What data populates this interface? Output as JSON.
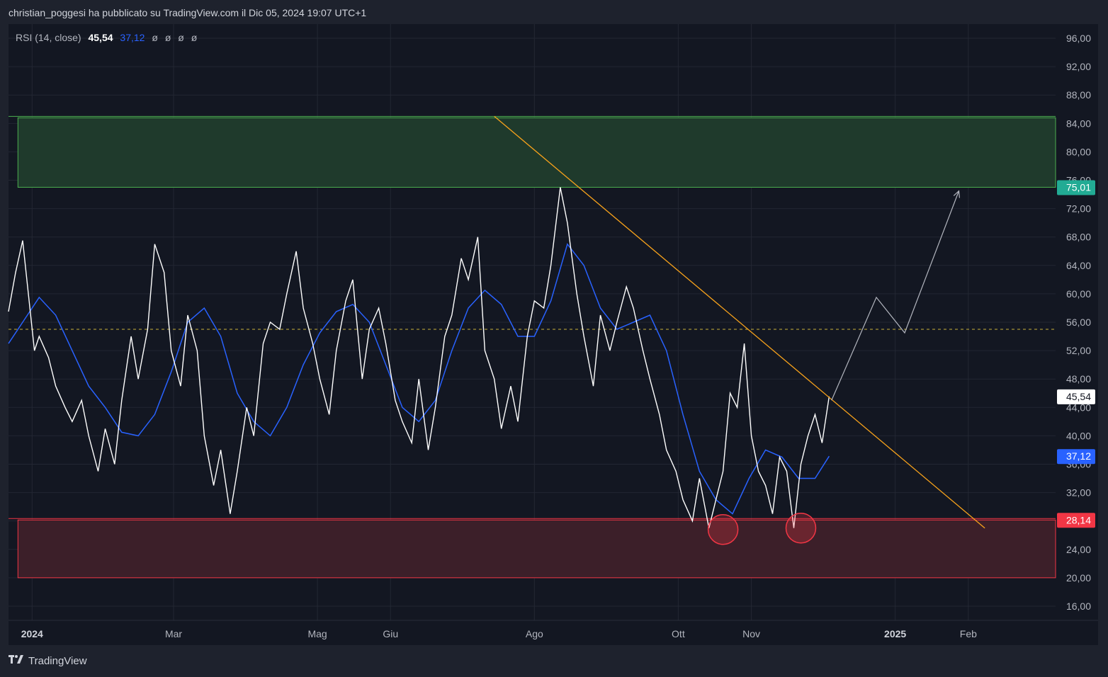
{
  "header": {
    "caption": "christian_poggesi ha pubblicato su TradingView.com il Dic 05, 2024 19:07 UTC+1"
  },
  "legend": {
    "name": "RSI (14, close)",
    "rsi_value": "45,54",
    "ma_value": "37,12",
    "na_values": [
      "ø",
      "ø",
      "ø",
      "ø"
    ]
  },
  "footer": {
    "brand": "TradingView",
    "logo_icon": "tradingview-logo-icon"
  },
  "colors": {
    "background": "#1e222d",
    "plot_bg": "#131722",
    "rsi": "#ffffff",
    "ma": "#2962ff",
    "trendline": "#f7a21b",
    "green_zone": "#1f3a2c",
    "green_border": "#4caf50",
    "red_zone": "#3c1f29",
    "red_border": "#f23645",
    "midline": "#c9b13b"
  },
  "chart_data": {
    "type": "line",
    "ylim": [
      14,
      98
    ],
    "y_ticks": [
      "96,00",
      "92,00",
      "88,00",
      "84,00",
      "80,00",
      "76,00",
      "72,00",
      "68,00",
      "64,00",
      "60,00",
      "56,00",
      "52,00",
      "48,00",
      "44,00",
      "40,00",
      "36,00",
      "32,00",
      "28,00",
      "24,00",
      "20,00",
      "16,00"
    ],
    "x_ticks": [
      {
        "label": "2024",
        "date": "2024-01-01",
        "bold": true
      },
      {
        "label": "Mar",
        "date": "2024-03-01",
        "bold": false
      },
      {
        "label": "Mag",
        "date": "2024-05-01",
        "bold": false
      },
      {
        "label": "Giu",
        "date": "2024-06-01",
        "bold": false
      },
      {
        "label": "Ago",
        "date": "2024-08-01",
        "bold": false
      },
      {
        "label": "Ott",
        "date": "2024-10-01",
        "bold": false
      },
      {
        "label": "Nov",
        "date": "2024-11-01",
        "bold": false
      },
      {
        "label": "2025",
        "date": "2025-01-01",
        "bold": true
      },
      {
        "label": "Feb",
        "date": "2025-02-01",
        "bold": false
      }
    ],
    "xlim": [
      "2023-12-22",
      "2025-03-10"
    ],
    "price_labels": [
      {
        "text": "75,01",
        "value": 75.01,
        "color": "#22ab94",
        "text_color": "#ffffff"
      },
      {
        "text": "45,54",
        "value": 45.54,
        "color": "#ffffff",
        "text_color": "#131722"
      },
      {
        "text": "37,12",
        "value": 37.12,
        "color": "#2962ff",
        "text_color": "#ffffff"
      },
      {
        "text": "28,14",
        "value": 28.14,
        "color": "#f23645",
        "text_color": "#ffffff"
      }
    ],
    "zones": [
      {
        "name": "resistance",
        "from": "2023-12-26",
        "to": "2025-03-10",
        "ymin": 75.01,
        "ymax": 84.8,
        "color": "#1f3a2c",
        "border": "#4caf50"
      },
      {
        "name": "support",
        "from": "2023-12-26",
        "to": "2025-03-10",
        "ymin": 20.0,
        "ymax": 28.14,
        "color": "#3c1f29",
        "border": "#f23645"
      }
    ],
    "midline": 55,
    "trendline": {
      "from": [
        "2024-07-15",
        85.0
      ],
      "to": [
        "2025-02-08",
        27.0
      ]
    },
    "projection": [
      [
        "2024-12-05",
        45.0
      ],
      [
        "2024-12-24",
        59.5
      ],
      [
        "2025-01-05",
        54.5
      ],
      [
        "2025-01-28",
        74.5
      ]
    ],
    "circles": [
      [
        "2024-10-20",
        26.8
      ],
      [
        "2024-11-22",
        27.0
      ]
    ],
    "series": [
      {
        "name": "RSI",
        "x": [
          "2023-12-22",
          "2023-12-25",
          "2023-12-28",
          "2024-01-02",
          "2024-01-04",
          "2024-01-08",
          "2024-01-11",
          "2024-01-15",
          "2024-01-18",
          "2024-01-22",
          "2024-01-25",
          "2024-01-29",
          "2024-02-01",
          "2024-02-05",
          "2024-02-08",
          "2024-02-12",
          "2024-02-15",
          "2024-02-19",
          "2024-02-22",
          "2024-02-26",
          "2024-02-29",
          "2024-03-04",
          "2024-03-07",
          "2024-03-11",
          "2024-03-14",
          "2024-03-18",
          "2024-03-21",
          "2024-03-25",
          "2024-03-28",
          "2024-04-01",
          "2024-04-04",
          "2024-04-08",
          "2024-04-11",
          "2024-04-15",
          "2024-04-18",
          "2024-04-22",
          "2024-04-25",
          "2024-04-29",
          "2024-05-02",
          "2024-05-06",
          "2024-05-09",
          "2024-05-13",
          "2024-05-16",
          "2024-05-20",
          "2024-05-23",
          "2024-05-27",
          "2024-05-30",
          "2024-06-03",
          "2024-06-06",
          "2024-06-10",
          "2024-06-13",
          "2024-06-17",
          "2024-06-20",
          "2024-06-24",
          "2024-06-27",
          "2024-07-01",
          "2024-07-04",
          "2024-07-08",
          "2024-07-11",
          "2024-07-15",
          "2024-07-18",
          "2024-07-22",
          "2024-07-25",
          "2024-07-29",
          "2024-08-01",
          "2024-08-05",
          "2024-08-08",
          "2024-08-12",
          "2024-08-15",
          "2024-08-19",
          "2024-08-22",
          "2024-08-26",
          "2024-08-29",
          "2024-09-02",
          "2024-09-05",
          "2024-09-09",
          "2024-09-12",
          "2024-09-16",
          "2024-09-19",
          "2024-09-23",
          "2024-09-26",
          "2024-09-30",
          "2024-10-03",
          "2024-10-07",
          "2024-10-10",
          "2024-10-14",
          "2024-10-17",
          "2024-10-20",
          "2024-10-23",
          "2024-10-26",
          "2024-10-29",
          "2024-11-01",
          "2024-11-04",
          "2024-11-07",
          "2024-11-10",
          "2024-11-13",
          "2024-11-16",
          "2024-11-19",
          "2024-11-22",
          "2024-11-25",
          "2024-11-28",
          "2024-12-01",
          "2024-12-04"
        ],
        "values": [
          57.5,
          63,
          67.5,
          52,
          54,
          51,
          47,
          44,
          42,
          45,
          40,
          35,
          41,
          36,
          45,
          54,
          48,
          55,
          67,
          63,
          52,
          47,
          57,
          52,
          40,
          33,
          38,
          29,
          35,
          44,
          40,
          53,
          56,
          55,
          60,
          66,
          58,
          53,
          48,
          43,
          52,
          59,
          62,
          48,
          55,
          58,
          53,
          45,
          42,
          39,
          48,
          38,
          44,
          54,
          57,
          65,
          62,
          68,
          52,
          48,
          41,
          47,
          42,
          54,
          59,
          58,
          64,
          75,
          70,
          60,
          54,
          47,
          57,
          52,
          56,
          61,
          58,
          52,
          48,
          43,
          38,
          35,
          31,
          28,
          34,
          27,
          31,
          35,
          46,
          44,
          53,
          40,
          35,
          33,
          29,
          37,
          35,
          27,
          36,
          40,
          43,
          39,
          45.54
        ]
      },
      {
        "name": "MA",
        "x": [
          "2023-12-22",
          "2023-12-28",
          "2024-01-04",
          "2024-01-11",
          "2024-01-18",
          "2024-01-25",
          "2024-02-01",
          "2024-02-08",
          "2024-02-15",
          "2024-02-22",
          "2024-02-29",
          "2024-03-07",
          "2024-03-14",
          "2024-03-21",
          "2024-03-28",
          "2024-04-04",
          "2024-04-11",
          "2024-04-18",
          "2024-04-25",
          "2024-05-02",
          "2024-05-09",
          "2024-05-16",
          "2024-05-23",
          "2024-05-30",
          "2024-06-06",
          "2024-06-13",
          "2024-06-20",
          "2024-06-27",
          "2024-07-04",
          "2024-07-11",
          "2024-07-18",
          "2024-07-25",
          "2024-08-01",
          "2024-08-08",
          "2024-08-15",
          "2024-08-22",
          "2024-08-29",
          "2024-09-05",
          "2024-09-12",
          "2024-09-19",
          "2024-09-26",
          "2024-10-03",
          "2024-10-10",
          "2024-10-17",
          "2024-10-24",
          "2024-10-31",
          "2024-11-07",
          "2024-11-14",
          "2024-11-21",
          "2024-11-28",
          "2024-12-04"
        ],
        "values": [
          53,
          56,
          59.5,
          57,
          52,
          47,
          44,
          40.5,
          40,
          43,
          49,
          56,
          58,
          54,
          46,
          42,
          40,
          44,
          50,
          54.5,
          57.5,
          58.5,
          56,
          50,
          44,
          42,
          45,
          52,
          58,
          60.5,
          58.5,
          54,
          54,
          59,
          67,
          64,
          58,
          55,
          56,
          57,
          52,
          43,
          35,
          31,
          29,
          34,
          38,
          37,
          34,
          34,
          37.12
        ]
      }
    ]
  }
}
